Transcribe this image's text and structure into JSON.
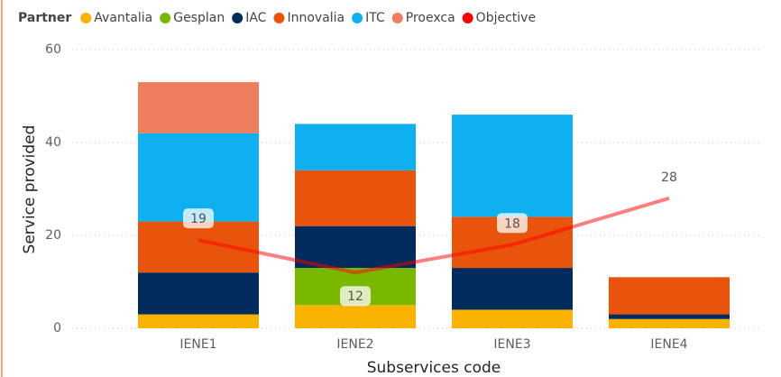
{
  "chart_data": {
    "type": "bar",
    "stacked": true,
    "legend_title": "Partner",
    "categories": [
      "IENE1",
      "IENE2",
      "IENE3",
      "IENE4"
    ],
    "x_label": "Subservices code",
    "y_label": "Service provided",
    "ylim": [
      0,
      60
    ],
    "yticks": [
      0,
      20,
      40,
      60
    ],
    "grid": true,
    "series": [
      {
        "name": "Avantalia",
        "color": "#F8B200",
        "values": [
          3,
          5,
          4,
          2
        ]
      },
      {
        "name": "Gesplan",
        "color": "#7AB800",
        "values": [
          null,
          8,
          null,
          null
        ]
      },
      {
        "name": "IAC",
        "color": "#002B5C",
        "values": [
          9,
          9,
          9,
          1
        ]
      },
      {
        "name": "Innovalia",
        "color": "#E8540C",
        "values": [
          11,
          12,
          11,
          8
        ]
      },
      {
        "name": "ITC",
        "color": "#0FB0F0",
        "values": [
          19,
          10,
          22,
          null
        ]
      },
      {
        "name": "Proexca",
        "color": "#EE7F5E",
        "values": [
          11,
          null,
          null,
          null
        ]
      },
      {
        "name": "Objective",
        "color": "#FF0000",
        "type": "line",
        "values": [
          19,
          12,
          18,
          28
        ]
      }
    ]
  }
}
